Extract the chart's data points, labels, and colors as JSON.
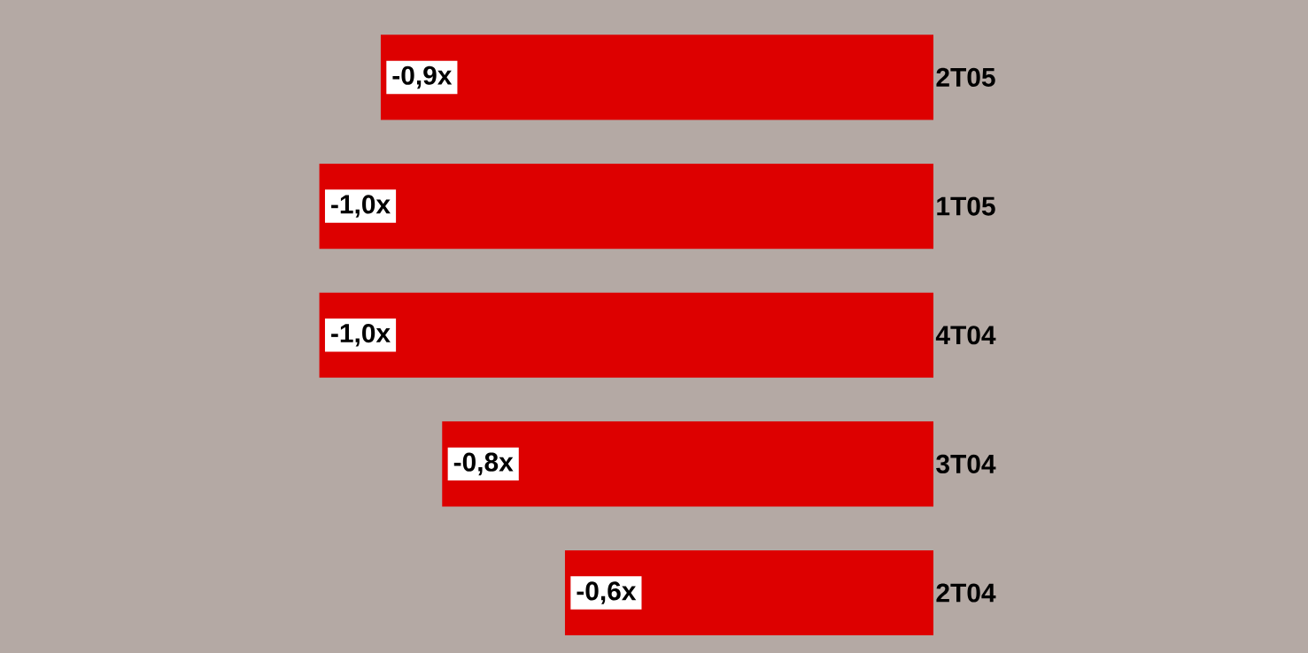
{
  "chart_data": {
    "type": "bar",
    "orientation": "horizontal",
    "categories": [
      "2T05",
      "1T05",
      "4T04",
      "3T04",
      "2T04"
    ],
    "values": [
      -0.9,
      -1.0,
      -1.0,
      -0.8,
      -0.6
    ],
    "value_labels": [
      "-0,9x",
      "-1,0x",
      "-1,0x",
      "-0,8x",
      "-0,6x"
    ],
    "color": "#dd0000"
  }
}
